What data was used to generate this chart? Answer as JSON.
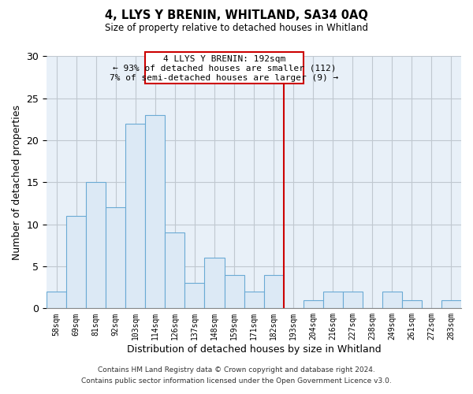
{
  "title": "4, LLYS Y BRENIN, WHITLAND, SA34 0AQ",
  "subtitle": "Size of property relative to detached houses in Whitland",
  "xlabel": "Distribution of detached houses by size in Whitland",
  "ylabel": "Number of detached properties",
  "bin_labels": [
    "58sqm",
    "69sqm",
    "81sqm",
    "92sqm",
    "103sqm",
    "114sqm",
    "126sqm",
    "137sqm",
    "148sqm",
    "159sqm",
    "171sqm",
    "182sqm",
    "193sqm",
    "204sqm",
    "216sqm",
    "227sqm",
    "238sqm",
    "249sqm",
    "261sqm",
    "272sqm",
    "283sqm"
  ],
  "bar_heights": [
    2,
    11,
    15,
    12,
    22,
    23,
    9,
    3,
    6,
    4,
    2,
    4,
    0,
    1,
    2,
    2,
    0,
    2,
    1,
    0,
    1
  ],
  "bar_color": "#dce9f5",
  "bar_edge_color": "#6aaad4",
  "reference_line_x_label": "193sqm",
  "reference_line_color": "#cc0000",
  "ylim": [
    0,
    30
  ],
  "yticks": [
    0,
    5,
    10,
    15,
    20,
    25,
    30
  ],
  "annotation_title": "4 LLYS Y BRENIN: 192sqm",
  "annotation_line1": "← 93% of detached houses are smaller (112)",
  "annotation_line2": "7% of semi-detached houses are larger (9) →",
  "footnote1": "Contains HM Land Registry data © Crown copyright and database right 2024.",
  "footnote2": "Contains public sector information licensed under the Open Government Licence v3.0.",
  "background_color": "#e8f0f8",
  "grid_color": "#c0c8d0"
}
